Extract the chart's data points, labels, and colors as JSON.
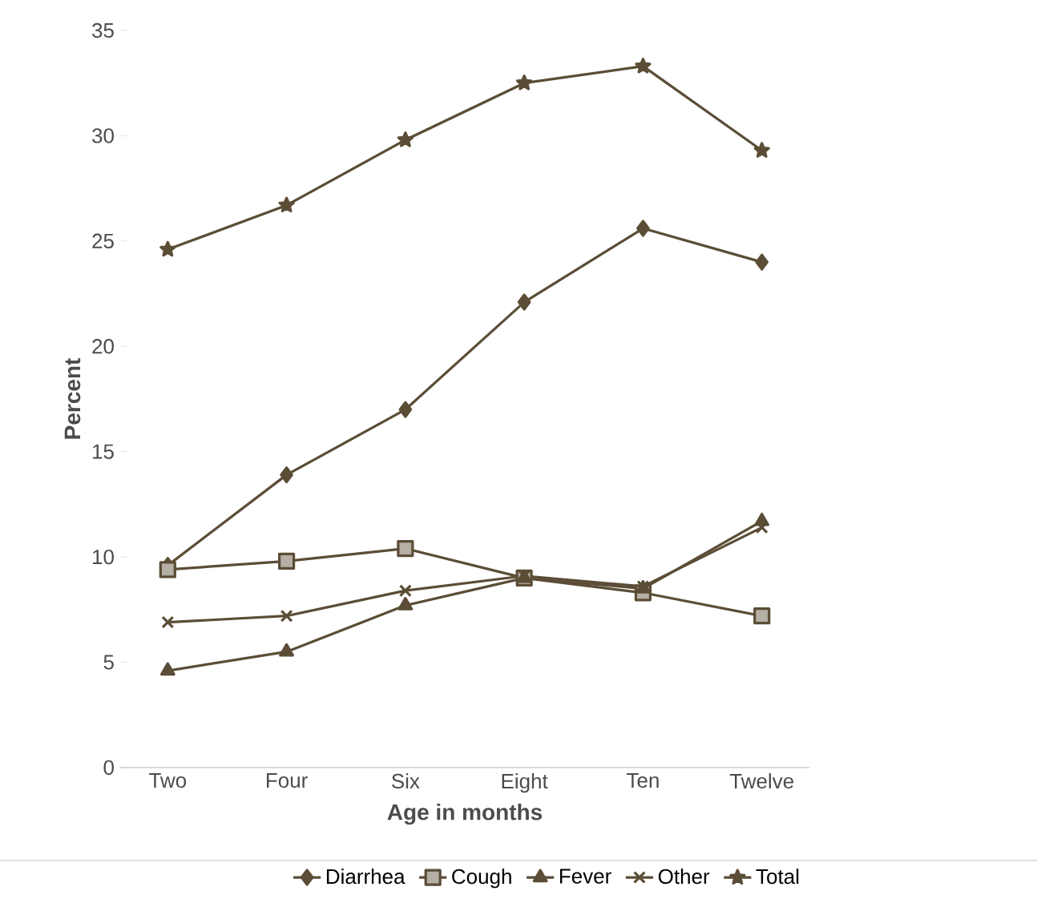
{
  "chart_data": {
    "type": "line",
    "xlabel": "Age in months",
    "ylabel": "Percent",
    "categories": [
      "Two",
      "Four",
      "Six",
      "Eight",
      "Ten",
      "Twelve"
    ],
    "ylim": [
      0,
      35
    ],
    "yticks": [
      0,
      5,
      10,
      15,
      20,
      25,
      30,
      35
    ],
    "grid": false,
    "legend": "bottom",
    "series": [
      {
        "name": "Diarrhea",
        "color": "#5b4d36",
        "marker": "diamond",
        "values": [
          9.6,
          13.9,
          17.0,
          22.1,
          25.6,
          24.0
        ]
      },
      {
        "name": "Cough",
        "color": "#5b4d36",
        "marker": "square",
        "values": [
          9.4,
          9.8,
          10.4,
          9.0,
          8.3,
          7.2
        ]
      },
      {
        "name": "Fever",
        "color": "#5b4d36",
        "marker": "triangle",
        "values": [
          4.6,
          5.5,
          7.7,
          9.0,
          8.5,
          11.7
        ]
      },
      {
        "name": "Other",
        "color": "#5b4d36",
        "marker": "cross",
        "values": [
          6.9,
          7.2,
          8.4,
          9.1,
          8.6,
          11.4
        ]
      },
      {
        "name": "Total",
        "color": "#5b4d36",
        "marker": "star",
        "values": [
          24.6,
          26.7,
          29.8,
          32.5,
          33.3,
          29.3
        ]
      }
    ]
  }
}
